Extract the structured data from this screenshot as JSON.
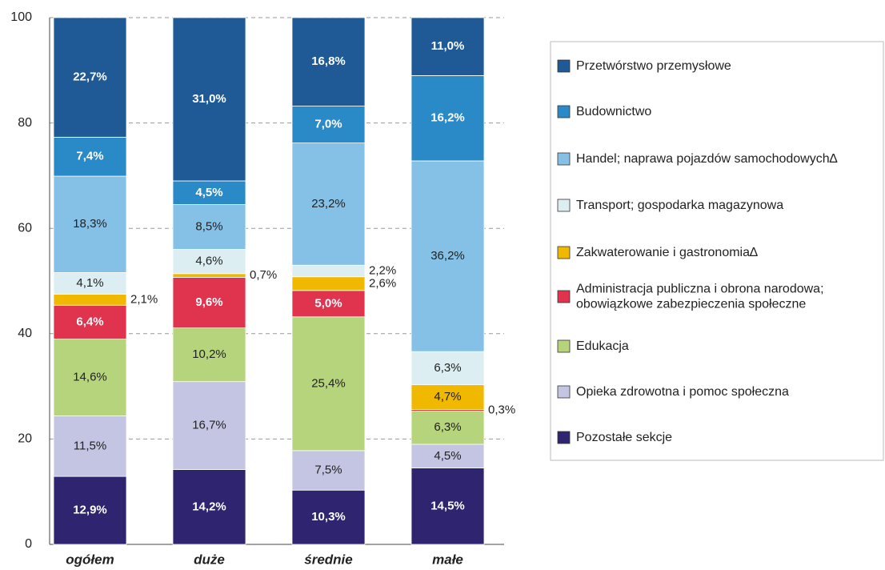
{
  "chart_data": {
    "type": "stacked_bar",
    "categories": [
      "ogółem",
      "duże",
      "średnie",
      "małe"
    ],
    "ylim": [
      0,
      100
    ],
    "yticks": [
      0,
      20,
      40,
      60,
      80,
      100
    ],
    "grid": true,
    "legend": "right",
    "series": [
      {
        "name": "Pozostałe sekcje",
        "color": "#2e2470",
        "values": [
          12.9,
          14.2,
          10.3,
          14.5
        ],
        "value_labels": [
          "12,9%",
          "14,2%",
          "10,3%",
          "14,5%"
        ]
      },
      {
        "name": "Opieka zdrowotna i pomoc społeczna",
        "color": "#c3c5e3",
        "values": [
          11.5,
          16.7,
          7.5,
          4.5
        ],
        "value_labels": [
          "11,5%",
          "16,7%",
          "7,5%",
          "4,5%"
        ]
      },
      {
        "name": "Edukacja",
        "color": "#b6d47c",
        "values": [
          14.6,
          10.2,
          25.4,
          6.3
        ],
        "value_labels": [
          "14,6%",
          "10,2%",
          "25,4%",
          "6,3%"
        ]
      },
      {
        "name": "Administracja publiczna i obrona narodowa;\nobowiązkowe zabezpieczenia społeczne",
        "color": "#e0334d",
        "values": [
          6.4,
          9.6,
          5.0,
          0.3
        ],
        "value_labels": [
          "6,4%",
          "9,6%",
          "5,0%",
          "0,3%"
        ]
      },
      {
        "name": "Zakwaterowanie i gastronomia∆",
        "color": "#f1b800",
        "values": [
          2.1,
          0.7,
          2.6,
          4.7
        ],
        "value_labels": [
          "2,1%",
          "0,7%",
          "2,6%",
          "4,7%"
        ]
      },
      {
        "name": "Transport; gospodarka magazynowa",
        "color": "#dceef2",
        "values": [
          4.1,
          4.6,
          2.2,
          6.3
        ],
        "value_labels": [
          "4,1%",
          "4,6%",
          "2,2%",
          "6,3%"
        ]
      },
      {
        "name": "Handel; naprawa pojazdów samochodowych∆",
        "color": "#85c1e6",
        "values": [
          18.3,
          8.5,
          23.2,
          36.2
        ],
        "value_labels": [
          "18,3%",
          "8,5%",
          "23,2%",
          "36,2%"
        ]
      },
      {
        "name": "Budownictwo",
        "color": "#2a8ac8",
        "values": [
          7.4,
          4.5,
          7.0,
          16.2
        ],
        "value_labels": [
          "7,4%",
          "4,5%",
          "7,0%",
          "16,2%"
        ]
      },
      {
        "name": "Przetwórstwo przemysłowe",
        "color": "#1f5a96",
        "values": [
          22.7,
          31.0,
          16.8,
          11.0
        ],
        "value_labels": [
          "22,7%",
          "31,0%",
          "16,8%",
          "11,0%"
        ]
      }
    ]
  }
}
